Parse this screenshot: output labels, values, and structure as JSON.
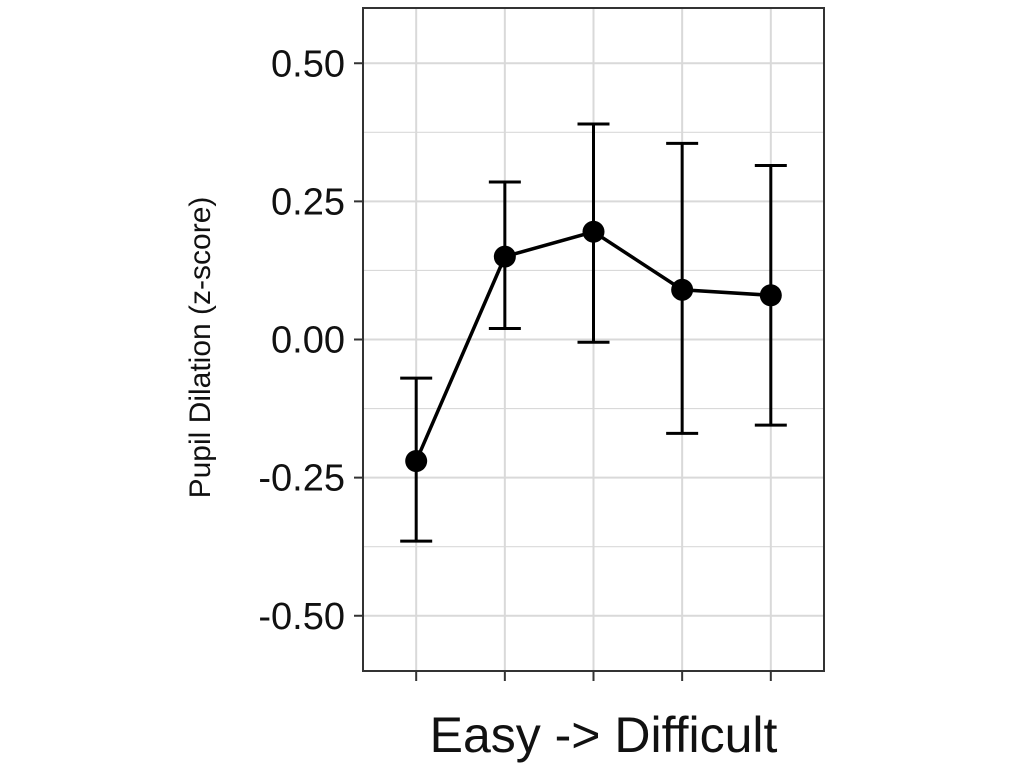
{
  "chart_data": {
    "type": "line",
    "title": "",
    "xlabel": "Easy -> Difficult",
    "ylabel": "Pupil Dilation (z-score)",
    "x": [
      1,
      2,
      3,
      4,
      5
    ],
    "x_tick_labels": [
      "",
      "",
      "",
      "",
      ""
    ],
    "ylim": [
      -0.6,
      0.6
    ],
    "yticks": [
      0.5,
      0.25,
      0.0,
      -0.25,
      -0.5
    ],
    "ytick_labels": [
      "0.50",
      "0.25",
      "0.00",
      "-0.25",
      "-0.50"
    ],
    "grid": true,
    "legend": "none",
    "series": [
      {
        "values": [
          -0.22,
          0.15,
          0.195,
          0.09,
          0.08
        ],
        "error_low": [
          -0.365,
          0.02,
          -0.005,
          -0.17,
          -0.155
        ],
        "error_high": [
          -0.07,
          0.285,
          0.39,
          0.355,
          0.315
        ]
      }
    ],
    "colors": {
      "line": "#000000",
      "grid": "#d9d9d9",
      "frame": "#333333"
    }
  }
}
